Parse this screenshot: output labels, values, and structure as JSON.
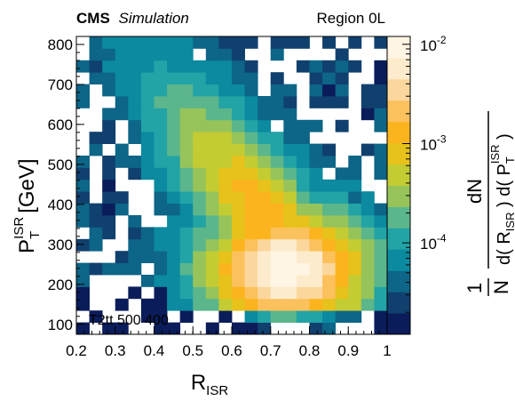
{
  "header": {
    "experiment": "CMS",
    "tag": "Simulation",
    "region": "Region 0L"
  },
  "annotation": "T2tt 500 400",
  "chart_data": {
    "type": "heatmap",
    "xlabel": {
      "main": "R",
      "sub": "ISR"
    },
    "ylabel": {
      "main": "P",
      "sub": "T",
      "sup": "ISR",
      "unit": "[GeV]"
    },
    "zlabel": "1/N dN / d(R_ISR) d(P_T^ISR)",
    "xlim": [
      0.2,
      1.0
    ],
    "ylim": [
      75,
      820
    ],
    "x_ticks": [
      "0.2",
      "0.3",
      "0.4",
      "0.5",
      "0.6",
      "0.7",
      "0.8",
      "0.9",
      "1"
    ],
    "y_ticks": [
      "100",
      "200",
      "300",
      "400",
      "500",
      "600",
      "700",
      "800"
    ],
    "z_scale": "log",
    "zlim": [
      1.2e-05,
      0.012
    ],
    "z_ticks": [
      {
        "base": "10",
        "exp": "-4",
        "value": 0.0001
      },
      {
        "base": "10",
        "exp": "-3",
        "value": 0.001
      },
      {
        "base": "10",
        "exp": "-2",
        "value": 0.01
      }
    ],
    "colormap": [
      "#0b1c5a",
      "#10406e",
      "#0d6587",
      "#0b8aa0",
      "#22a3a6",
      "#5bb68c",
      "#97c45a",
      "#c3cc32",
      "#e7c21b",
      "#fbb41d",
      "#fbc15c",
      "#fcd79d",
      "#fdebcd",
      "#fff5e4"
    ],
    "bins": {
      "nx": 24,
      "ny": 25
    },
    "peak": {
      "x": 0.74,
      "y": 235
    },
    "grid": false,
    "legend": "colorbar-right"
  }
}
